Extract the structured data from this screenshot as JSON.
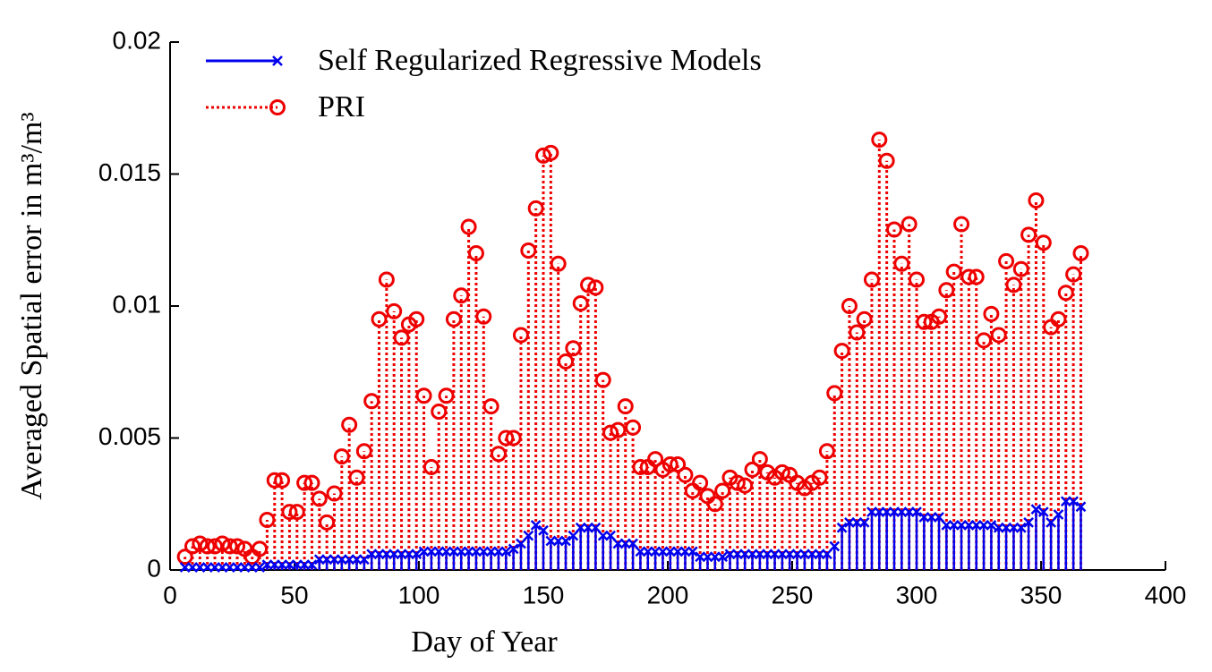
{
  "chart_data": {
    "type": "stem",
    "xlabel": "Day of Year",
    "ylabel": "Averaged Spatial error in m³/m³",
    "xlim": [
      0,
      400
    ],
    "xticks": [
      0,
      50,
      100,
      150,
      200,
      250,
      300,
      350,
      400
    ],
    "ylim": [
      0,
      0.02
    ],
    "yticks": [
      0,
      0.005,
      0.01,
      0.015,
      0.02
    ],
    "legend": "upper left",
    "x": [
      6,
      9,
      12,
      15,
      18,
      21,
      24,
      27,
      30,
      33,
      36,
      39,
      42,
      45,
      48,
      51,
      54,
      57,
      60,
      63,
      66,
      69,
      72,
      75,
      78,
      81,
      84,
      87,
      90,
      93,
      96,
      99,
      102,
      105,
      108,
      111,
      114,
      117,
      120,
      123,
      126,
      129,
      132,
      135,
      138,
      141,
      144,
      147,
      150,
      153,
      156,
      159,
      162,
      165,
      168,
      171,
      174,
      177,
      180,
      183,
      186,
      189,
      192,
      195,
      198,
      201,
      204,
      207,
      210,
      213,
      216,
      219,
      222,
      225,
      228,
      231,
      234,
      237,
      240,
      243,
      246,
      249,
      252,
      255,
      258,
      261,
      264,
      267,
      270,
      273,
      276,
      279,
      282,
      285,
      288,
      291,
      294,
      297,
      300,
      303,
      306,
      309,
      312,
      315,
      318,
      321,
      324,
      327,
      330,
      333,
      336,
      339,
      342,
      345,
      348,
      351,
      354,
      357,
      360,
      363,
      366
    ],
    "series": [
      {
        "name": "Self Regularized Regressive Models",
        "color": "#0000ee",
        "marker": "x",
        "linestyle": "solid",
        "values": [
          0.0001,
          0.0001,
          0.0001,
          0.0001,
          0.0001,
          0.0001,
          0.0001,
          0.0001,
          0.0001,
          0.0001,
          0.0001,
          0.0002,
          0.0002,
          0.0002,
          0.0002,
          0.0002,
          0.0002,
          0.0002,
          0.0004,
          0.0004,
          0.0004,
          0.0004,
          0.0004,
          0.0004,
          0.0004,
          0.0006,
          0.0006,
          0.0006,
          0.0006,
          0.0006,
          0.0006,
          0.0006,
          0.0007,
          0.0007,
          0.0007,
          0.0007,
          0.0007,
          0.0007,
          0.0007,
          0.0007,
          0.0007,
          0.0007,
          0.0007,
          0.0007,
          0.0008,
          0.001,
          0.0013,
          0.0017,
          0.0015,
          0.0011,
          0.0011,
          0.0011,
          0.0013,
          0.0016,
          0.0016,
          0.0016,
          0.0013,
          0.0013,
          0.001,
          0.001,
          0.001,
          0.0007,
          0.0007,
          0.0007,
          0.0007,
          0.0007,
          0.0007,
          0.0007,
          0.0007,
          0.0005,
          0.0005,
          0.0005,
          0.0005,
          0.0006,
          0.0006,
          0.0006,
          0.0006,
          0.0006,
          0.0006,
          0.0006,
          0.0006,
          0.0006,
          0.0006,
          0.0006,
          0.0006,
          0.0006,
          0.0006,
          0.0009,
          0.0016,
          0.0018,
          0.0018,
          0.0018,
          0.0022,
          0.0022,
          0.0022,
          0.0022,
          0.0022,
          0.0022,
          0.0022,
          0.002,
          0.002,
          0.002,
          0.0017,
          0.0017,
          0.0017,
          0.0017,
          0.0017,
          0.0017,
          0.0017,
          0.0016,
          0.0016,
          0.0016,
          0.0016,
          0.0018,
          0.0023,
          0.0022,
          0.0018,
          0.0021,
          0.0026,
          0.0026,
          0.0024
        ]
      },
      {
        "name": "PRI",
        "color": "#ee0000",
        "marker": "o",
        "linestyle": "dotted",
        "values": [
          0.0005,
          0.0009,
          0.001,
          0.0009,
          0.0009,
          0.001,
          0.0009,
          0.0009,
          0.0008,
          0.0005,
          0.0008,
          0.0019,
          0.0034,
          0.0034,
          0.0022,
          0.0022,
          0.0033,
          0.0033,
          0.0027,
          0.0018,
          0.0029,
          0.0043,
          0.0055,
          0.0035,
          0.0045,
          0.0064,
          0.0095,
          0.011,
          0.0098,
          0.0088,
          0.0093,
          0.0095,
          0.0066,
          0.0039,
          0.006,
          0.0066,
          0.0095,
          0.0104,
          0.013,
          0.012,
          0.0096,
          0.0062,
          0.0044,
          0.005,
          0.005,
          0.0089,
          0.0121,
          0.0137,
          0.0157,
          0.0158,
          0.0116,
          0.0079,
          0.0084,
          0.0101,
          0.0108,
          0.0107,
          0.0072,
          0.0052,
          0.0053,
          0.0062,
          0.0054,
          0.0039,
          0.0039,
          0.0042,
          0.0038,
          0.004,
          0.004,
          0.0036,
          0.003,
          0.0033,
          0.0028,
          0.0025,
          0.003,
          0.0035,
          0.0033,
          0.0032,
          0.0038,
          0.0042,
          0.0037,
          0.0035,
          0.0037,
          0.0036,
          0.0033,
          0.0031,
          0.0033,
          0.0035,
          0.0045,
          0.0067,
          0.0083,
          0.01,
          0.009,
          0.0095,
          0.011,
          0.0163,
          0.0155,
          0.0129,
          0.0116,
          0.0131,
          0.011,
          0.0094,
          0.0094,
          0.0096,
          0.0106,
          0.0113,
          0.0131,
          0.0111,
          0.0111,
          0.0087,
          0.0097,
          0.0089,
          0.0117,
          0.0108,
          0.0114,
          0.0127,
          0.014,
          0.0124,
          0.0092,
          0.0095,
          0.0105,
          0.0112,
          0.012
        ]
      }
    ]
  }
}
